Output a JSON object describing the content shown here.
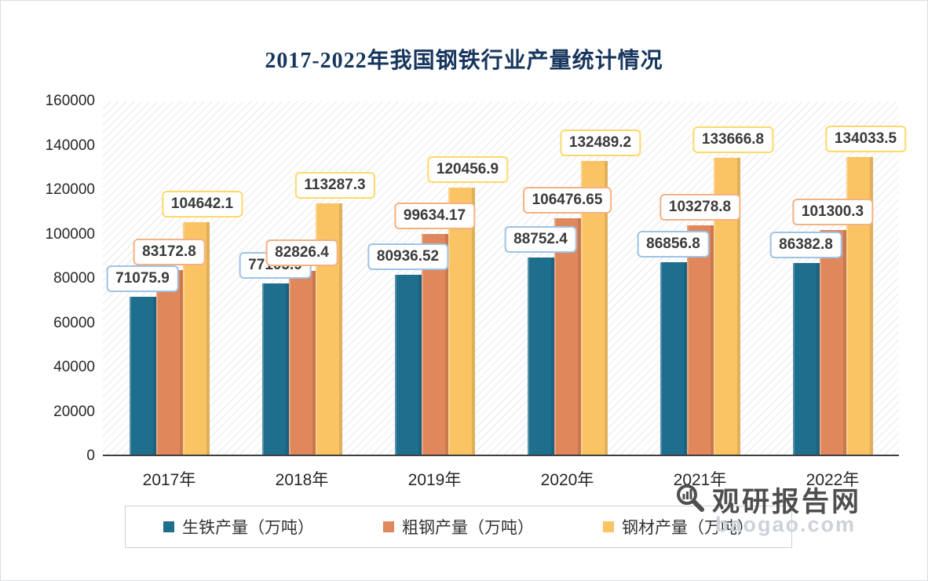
{
  "title": "2017-2022年我国钢铁行业产量统计情况",
  "watermark": {
    "brand": "观研报告网",
    "domain": "baogao.com"
  },
  "chart_data": {
    "type": "bar",
    "title": "2017-2022年我国钢铁行业产量统计情况",
    "categories": [
      "2017年",
      "2018年",
      "2019年",
      "2020年",
      "2021年",
      "2022年"
    ],
    "series": [
      {
        "name": "生铁产量（万吨）",
        "color": "#1e6e8e",
        "label_border": "#9dc3e6",
        "values": [
          71075.9,
          77105.9,
          80936.52,
          88752.4,
          86856.8,
          86382.8
        ],
        "labels": [
          "71075.9",
          "77105.9",
          "80936.52",
          "88752.4",
          "86856.8",
          "86382.8"
        ]
      },
      {
        "name": "粗钢产量（万吨）",
        "color": "#e0875b",
        "label_border": "#f4b183",
        "values": [
          83172.8,
          82826.4,
          99634.17,
          106476.65,
          103278.8,
          101300.3
        ],
        "labels": [
          "83172.8",
          "82826.4",
          "99634.17",
          "106476.65",
          "103278.8",
          "101300.3"
        ]
      },
      {
        "name": "钢材产量（万吨）",
        "color": "#fac364",
        "label_border": "#ffd966",
        "values": [
          104642.1,
          113287.3,
          120456.9,
          132489.2,
          133666.8,
          134033.5
        ],
        "labels": [
          "104642.1",
          "113287.3",
          "120456.9",
          "132489.2",
          "133666.8",
          "134033.5"
        ]
      }
    ],
    "xlabel": "",
    "ylabel": "",
    "ylim": [
      0,
      160000
    ],
    "ytick_step": 20000,
    "yticks": [
      "160000",
      "140000",
      "120000",
      "100000",
      "80000",
      "60000",
      "40000",
      "20000",
      "0"
    ],
    "grid": false,
    "legend_position": "bottom",
    "plot_background": "diagonal-hatch"
  }
}
